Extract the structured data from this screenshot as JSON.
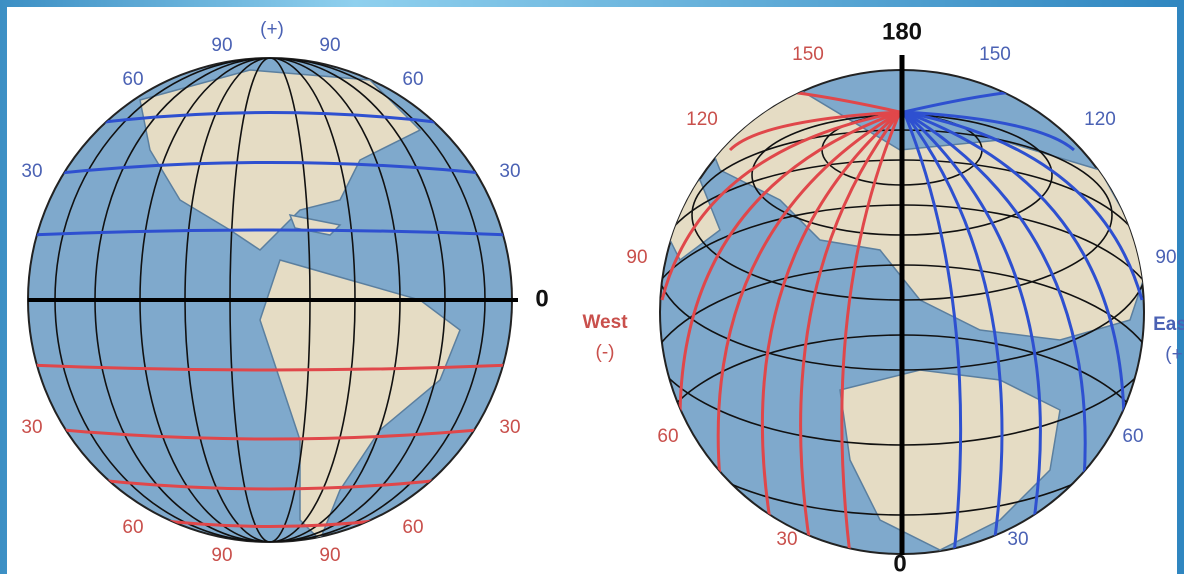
{
  "left_globe": {
    "labels": [
      "(+)",
      "90",
      "90",
      "60",
      "60",
      "30",
      "30",
      "0",
      "30",
      "30",
      "60",
      "60",
      "90",
      "90"
    ]
  },
  "right_globe": {
    "labels": [
      "180",
      "150",
      "150",
      "120",
      "120",
      "90",
      "90",
      "West",
      "(-)",
      "Eas",
      "(+",
      "60",
      "60",
      "30",
      "30",
      "0"
    ]
  }
}
